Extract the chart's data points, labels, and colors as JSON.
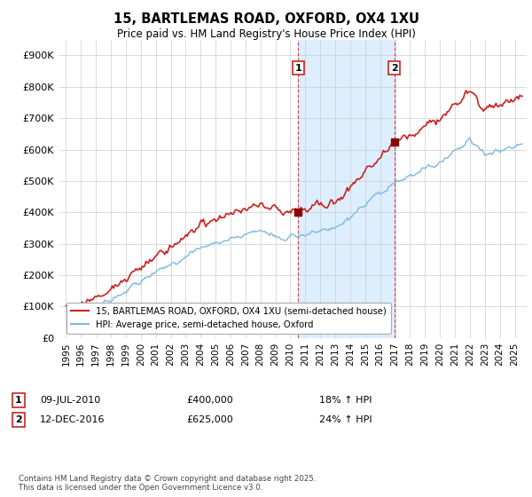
{
  "title1": "15, BARTLEMAS ROAD, OXFORD, OX4 1XU",
  "title2": "Price paid vs. HM Land Registry's House Price Index (HPI)",
  "legend_line1": "15, BARTLEMAS ROAD, OXFORD, OX4 1XU (semi-detached house)",
  "legend_line2": "HPI: Average price, semi-detached house, Oxford",
  "footnote": "Contains HM Land Registry data © Crown copyright and database right 2025.\nThis data is licensed under the Open Government Licence v3.0.",
  "annotation1_date": "09-JUL-2010",
  "annotation1_price": "£400,000",
  "annotation1_hpi": "18% ↑ HPI",
  "annotation2_date": "12-DEC-2016",
  "annotation2_price": "£625,000",
  "annotation2_hpi": "24% ↑ HPI",
  "sale1_x": 2010.52,
  "sale1_y": 400000,
  "sale2_x": 2016.95,
  "sale2_y": 625000,
  "hpi_color": "#7cb9e0",
  "price_color": "#cc2222",
  "sale_dot_color": "#8B0000",
  "vline_color": "#cc2222",
  "shade_color": "#ddeeff",
  "ylim": [
    0,
    950000
  ],
  "yticks": [
    0,
    100000,
    200000,
    300000,
    400000,
    500000,
    600000,
    700000,
    800000,
    900000
  ],
  "ytick_labels": [
    "£0",
    "£100K",
    "£200K",
    "£300K",
    "£400K",
    "£500K",
    "£600K",
    "£700K",
    "£800K",
    "£900K"
  ],
  "xlim_left": 1994.5,
  "xlim_right": 2025.8,
  "xticks": [
    1995,
    1996,
    1997,
    1998,
    1999,
    2000,
    2001,
    2002,
    2003,
    2004,
    2005,
    2006,
    2007,
    2008,
    2009,
    2010,
    2011,
    2012,
    2013,
    2014,
    2015,
    2016,
    2017,
    2018,
    2019,
    2020,
    2021,
    2022,
    2023,
    2024,
    2025
  ],
  "bg_color": "#ffffff",
  "grid_color": "#cccccc"
}
